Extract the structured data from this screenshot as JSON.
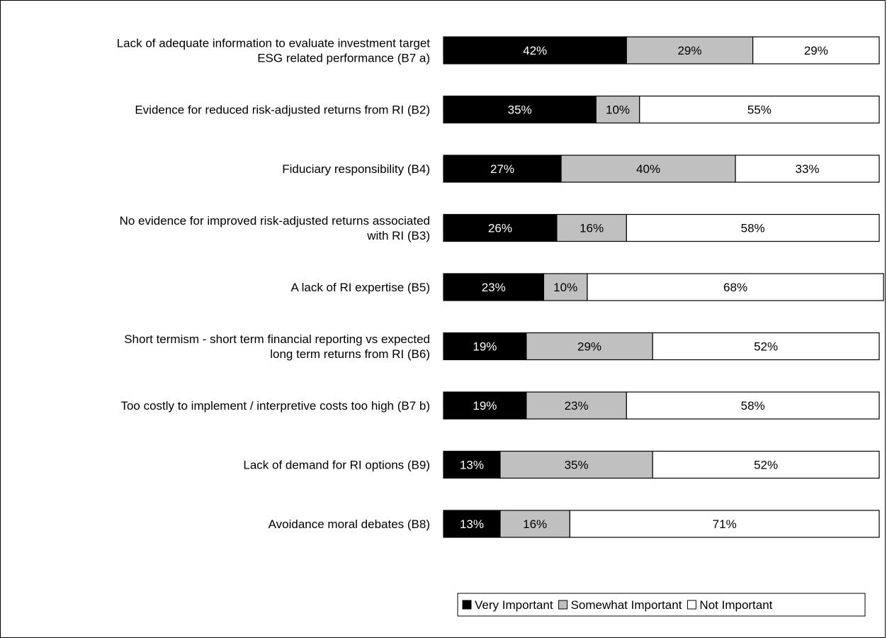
{
  "chart_data": {
    "type": "bar",
    "orientation": "horizontal",
    "stacked": true,
    "categories": [
      [
        "Lack of adequate information to evaluate investment target",
        "ESG related performance (B7 a)"
      ],
      [
        "Evidence for reduced risk-adjusted returns from RI (B2)"
      ],
      [
        "Fiduciary responsibility (B4)"
      ],
      [
        "No evidence for improved risk-adjusted returns associated",
        "with RI (B3)"
      ],
      [
        "A lack of RI expertise (B5)"
      ],
      [
        "Short termism - short term financial reporting vs expected",
        "long term returns from RI (B6)"
      ],
      [
        "Too costly  to implement / interpretive costs too high (B7 b)"
      ],
      [
        "Lack of demand for RI options (B9)"
      ],
      [
        "Avoidance moral debates (B8)"
      ]
    ],
    "series": [
      {
        "name": "Very Important",
        "color": "#000000",
        "text_color": "#ffffff",
        "values": [
          42,
          35,
          27,
          26,
          23,
          19,
          19,
          13,
          13
        ]
      },
      {
        "name": "Somewhat Important",
        "color": "#c0c0c0",
        "text_color": "#000000",
        "values": [
          29,
          10,
          40,
          16,
          10,
          29,
          23,
          35,
          16
        ]
      },
      {
        "name": "Not Important",
        "color": "#ffffff",
        "text_color": "#000000",
        "values": [
          29,
          55,
          33,
          58,
          68,
          52,
          58,
          52,
          71
        ]
      }
    ],
    "value_suffix": "%",
    "xlim": [
      0,
      100
    ],
    "grid": false,
    "legend_position": "bottom-right"
  }
}
